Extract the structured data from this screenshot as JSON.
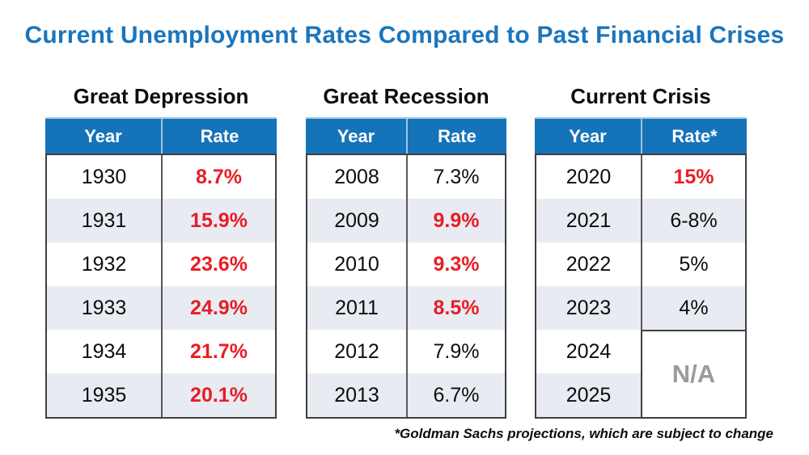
{
  "page": {
    "title": "Current Unemployment Rates Compared to Past Financial Crises",
    "footnote": "*Goldman Sachs projections, which are subject to change"
  },
  "colors": {
    "title_blue": "#1B75BC",
    "header_blue": "#1573BA",
    "header_divider_light_blue": "#9DC3E6",
    "row_shade": "#E9EBF3",
    "rate_red": "#E81D25",
    "na_gray": "#9B9B9B",
    "table_border": "#3F3F3F"
  },
  "tables": {
    "depression": {
      "title": "Great Depression",
      "columns": [
        "Year",
        "Rate"
      ],
      "rows": [
        {
          "year": "1930",
          "rate": "8.7%",
          "red": true
        },
        {
          "year": "1931",
          "rate": "15.9%",
          "red": true
        },
        {
          "year": "1932",
          "rate": "23.6%",
          "red": true
        },
        {
          "year": "1933",
          "rate": "24.9%",
          "red": true
        },
        {
          "year": "1934",
          "rate": "21.7%",
          "red": true
        },
        {
          "year": "1935",
          "rate": "20.1%",
          "red": true
        }
      ]
    },
    "recession": {
      "title": "Great Recession",
      "columns": [
        "Year",
        "Rate"
      ],
      "rows": [
        {
          "year": "2008",
          "rate": "7.3%",
          "red": false
        },
        {
          "year": "2009",
          "rate": "9.9%",
          "red": true
        },
        {
          "year": "2010",
          "rate": "9.3%",
          "red": true
        },
        {
          "year": "2011",
          "rate": "8.5%",
          "red": true
        },
        {
          "year": "2012",
          "rate": "7.9%",
          "red": false
        },
        {
          "year": "2013",
          "rate": "6.7%",
          "red": false
        }
      ]
    },
    "crisis": {
      "title": "Current Crisis",
      "columns": [
        "Year",
        "Rate*"
      ],
      "rows": [
        {
          "year": "2020",
          "rate": "15%",
          "red": true
        },
        {
          "year": "2021",
          "rate": "6-8%",
          "red": false
        },
        {
          "year": "2022",
          "rate": "5%",
          "red": false
        },
        {
          "year": "2023",
          "rate": "4%",
          "red": false
        },
        {
          "year": "2024"
        },
        {
          "year": "2025"
        }
      ],
      "na_label": "N/A"
    }
  },
  "chart_data": [
    {
      "type": "table",
      "title": "Great Depression",
      "columns": [
        "Year",
        "Rate"
      ],
      "rows": [
        [
          "1930",
          "8.7%"
        ],
        [
          "1931",
          "15.9%"
        ],
        [
          "1932",
          "23.6%"
        ],
        [
          "1933",
          "24.9%"
        ],
        [
          "1934",
          "21.7%"
        ],
        [
          "1935",
          "20.1%"
        ]
      ]
    },
    {
      "type": "table",
      "title": "Great Recession",
      "columns": [
        "Year",
        "Rate"
      ],
      "rows": [
        [
          "2008",
          "7.3%"
        ],
        [
          "2009",
          "9.9%"
        ],
        [
          "2010",
          "9.3%"
        ],
        [
          "2011",
          "8.5%"
        ],
        [
          "2012",
          "7.9%"
        ],
        [
          "2013",
          "6.7%"
        ]
      ]
    },
    {
      "type": "table",
      "title": "Current Crisis",
      "columns": [
        "Year",
        "Rate*"
      ],
      "rows": [
        [
          "2020",
          "15%"
        ],
        [
          "2021",
          "6-8%"
        ],
        [
          "2022",
          "5%"
        ],
        [
          "2023",
          "4%"
        ],
        [
          "2024",
          "N/A"
        ],
        [
          "2025",
          "N/A"
        ]
      ]
    }
  ]
}
